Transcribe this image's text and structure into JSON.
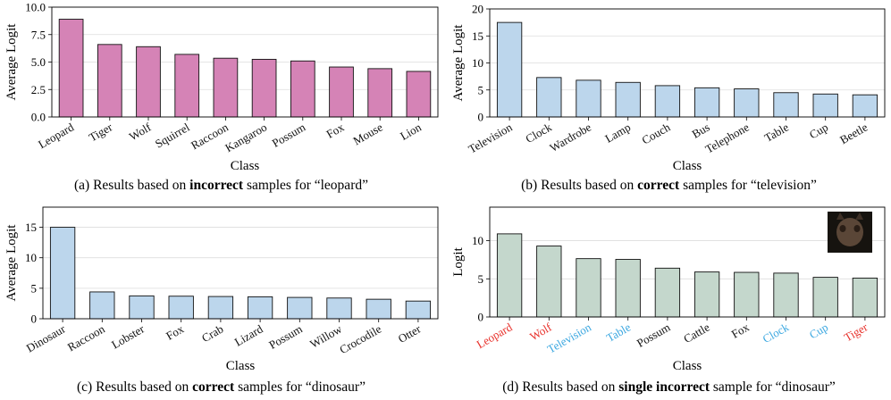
{
  "colors": {
    "pink": "#d583b6",
    "blue": "#bcd6ec",
    "grey_green": "#c4d7cc",
    "red_label": "#e8312b",
    "blue_label": "#3ba7e0",
    "black": "#222222",
    "grid": "#dddddd"
  },
  "chart_data": [
    {
      "id": "a",
      "type": "bar",
      "ylabel": "Average Logit",
      "xlabel": "Class",
      "ylim": [
        0,
        10
      ],
      "yticks": [
        "0.0",
        "2.5",
        "5.0",
        "7.5",
        "10.0"
      ],
      "ytick_values": [
        0,
        2.5,
        5,
        7.5,
        10
      ],
      "categories": [
        "Leopard",
        "Tiger",
        "Wolf",
        "Squirrel",
        "Raccoon",
        "Kangaroo",
        "Possum",
        "Fox",
        "Mouse",
        "Lion"
      ],
      "values": [
        8.9,
        6.6,
        6.4,
        5.7,
        5.35,
        5.25,
        5.1,
        4.55,
        4.4,
        4.15
      ],
      "bar_color": "pink",
      "caption": {
        "prefix": "(a) Results based on ",
        "bold": "incorrect",
        "suffix": " samples for “leopard”"
      }
    },
    {
      "id": "b",
      "type": "bar",
      "ylabel": "Average Logit",
      "xlabel": "Class",
      "ylim": [
        0,
        20
      ],
      "yticks": [
        "0",
        "5",
        "10",
        "15",
        "20"
      ],
      "ytick_values": [
        0,
        5,
        10,
        15,
        20
      ],
      "categories": [
        "Television",
        "Clock",
        "Wardrobe",
        "Lamp",
        "Couch",
        "Bus",
        "Telephone",
        "Table",
        "Cup",
        "Beetle"
      ],
      "values": [
        17.5,
        7.3,
        6.8,
        6.4,
        5.8,
        5.4,
        5.2,
        4.5,
        4.25,
        4.1
      ],
      "bar_color": "blue",
      "caption": {
        "prefix": "(b) Results based on ",
        "bold": "correct",
        "suffix": " samples for “television”"
      }
    },
    {
      "id": "c",
      "type": "bar",
      "ylabel": "Average Logit",
      "xlabel": "Class",
      "ylim": [
        0,
        18.3
      ],
      "yticks": [
        "0",
        "5",
        "10",
        "15"
      ],
      "ytick_values": [
        0,
        5,
        10,
        15
      ],
      "categories": [
        "Dinosaur",
        "Raccoon",
        "Lobster",
        "Fox",
        "Crab",
        "Lizard",
        "Possum",
        "Willow",
        "Crocodile",
        "Otter"
      ],
      "values": [
        15.0,
        4.4,
        3.75,
        3.7,
        3.65,
        3.6,
        3.5,
        3.4,
        3.2,
        2.9
      ],
      "bar_color": "blue",
      "caption": {
        "prefix": "(c) Results based on ",
        "bold": "correct",
        "suffix": " samples for “dinosaur”"
      }
    },
    {
      "id": "d",
      "type": "bar",
      "ylabel": "Logit",
      "xlabel": "Class",
      "ylim": [
        0,
        14.4
      ],
      "yticks": [
        "0",
        "5",
        "10"
      ],
      "ytick_values": [
        0,
        5,
        10
      ],
      "categories": [
        "Leopard",
        "Wolf",
        "Television",
        "Table",
        "Possum",
        "Cattle",
        "Fox",
        "Clock",
        "Cup",
        "Tiger"
      ],
      "values": [
        10.9,
        9.3,
        7.65,
        7.55,
        6.4,
        5.9,
        5.85,
        5.75,
        5.2,
        5.1
      ],
      "label_colors": [
        "red_label",
        "red_label",
        "blue_label",
        "blue_label",
        "black",
        "black",
        "black",
        "blue_label",
        "blue_label",
        "red_label"
      ],
      "bar_color": "grey_green",
      "inset_image": "dinosaur-sample-thumbnail",
      "caption": {
        "prefix": "(d) Results based on ",
        "bold": "single incorrect",
        "suffix": " sample for “dinosaur”"
      }
    }
  ]
}
